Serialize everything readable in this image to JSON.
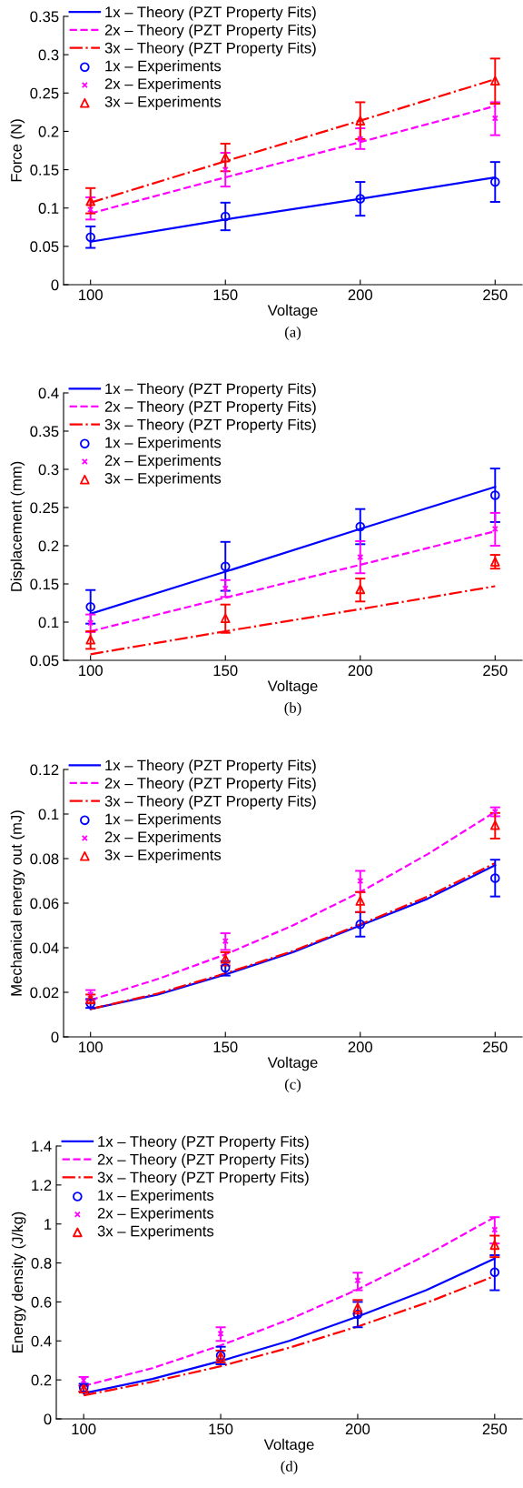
{
  "chart_data": [
    {
      "type": "line",
      "xlabel": "Voltage",
      "ylabel": "Force (N)",
      "xlim": [
        90,
        260
      ],
      "xticks": [
        100,
        150,
        200,
        250
      ],
      "ylim": [
        0,
        0.35
      ],
      "yticks": [
        0,
        0.05,
        0.1,
        0.15,
        0.2,
        0.25,
        0.3,
        0.35
      ],
      "legend": "top left",
      "grid": false,
      "annotations": [
        "(a)"
      ],
      "series": [
        {
          "name": "1x – Theory (PZT Property Fits)",
          "type": "line",
          "color": "#0000ff",
          "line_style": "solid",
          "marker": "none",
          "x": [
            100,
            150,
            200,
            250
          ],
          "values": [
            0.056,
            0.085,
            0.112,
            0.14
          ]
        },
        {
          "name": "2x – Theory (PZT Property Fits)",
          "type": "line",
          "color": "#ff00ff",
          "line_style": "dashed",
          "marker": "none",
          "x": [
            100,
            150,
            200,
            250
          ],
          "values": [
            0.093,
            0.14,
            0.186,
            0.233
          ]
        },
        {
          "name": "3x – Theory (PZT Property Fits)",
          "type": "line",
          "color": "#ff0000",
          "line_style": "dashdot",
          "marker": "none",
          "x": [
            100,
            150,
            200,
            250
          ],
          "values": [
            0.107,
            0.161,
            0.214,
            0.268
          ]
        },
        {
          "name": "1x – Experiments",
          "type": "scatter",
          "color": "#0000ff",
          "marker": "circle",
          "x": [
            100,
            150,
            200,
            250
          ],
          "values": [
            0.062,
            0.089,
            0.112,
            0.134
          ],
          "errors": [
            [
              0.048,
              0.076
            ],
            [
              0.071,
              0.107
            ],
            [
              0.09,
              0.134
            ],
            [
              0.108,
              0.16
            ]
          ]
        },
        {
          "name": "2x – Experiments",
          "type": "scatter",
          "color": "#ff00ff",
          "marker": "cross",
          "x": [
            100,
            150,
            200,
            250
          ],
          "values": [
            0.098,
            0.15,
            0.19,
            0.217
          ],
          "errors": [
            [
              0.085,
              0.114
            ],
            [
              0.128,
              0.172
            ],
            [
              0.177,
              0.204
            ],
            [
              0.195,
              0.238
            ]
          ]
        },
        {
          "name": "3x – Experiments",
          "type": "scatter",
          "color": "#ff0000",
          "marker": "triangle",
          "x": [
            100,
            150,
            200,
            250
          ],
          "values": [
            0.109,
            0.166,
            0.214,
            0.266
          ],
          "errors": [
            [
              0.093,
              0.126
            ],
            [
              0.148,
              0.184
            ],
            [
              0.19,
              0.238
            ],
            [
              0.236,
              0.295
            ]
          ]
        }
      ]
    },
    {
      "type": "line",
      "xlabel": "Voltage",
      "ylabel": "Displacement (mm)",
      "xlim": [
        90,
        260
      ],
      "xticks": [
        100,
        150,
        200,
        250
      ],
      "ylim": [
        0.05,
        0.4
      ],
      "yticks": [
        0.05,
        0.1,
        0.15,
        0.2,
        0.25,
        0.3,
        0.35,
        0.4
      ],
      "legend": "top left",
      "grid": false,
      "annotations": [
        "(b)"
      ],
      "series": [
        {
          "name": "1x – Theory (PZT Property Fits)",
          "type": "line",
          "color": "#0000ff",
          "line_style": "solid",
          "marker": "none",
          "x": [
            100,
            150,
            200,
            250
          ],
          "values": [
            0.111,
            0.166,
            0.222,
            0.277
          ]
        },
        {
          "name": "2x – Theory (PZT Property Fits)",
          "type": "line",
          "color": "#ff00ff",
          "line_style": "dashed",
          "marker": "none",
          "x": [
            100,
            150,
            200,
            250
          ],
          "values": [
            0.088,
            0.132,
            0.175,
            0.219
          ]
        },
        {
          "name": "3x – Theory (PZT Property Fits)",
          "type": "line",
          "color": "#ff0000",
          "line_style": "dashdot",
          "marker": "none",
          "x": [
            100,
            150,
            200,
            250
          ],
          "values": [
            0.058,
            0.088,
            0.117,
            0.147
          ]
        },
        {
          "name": "1x – Experiments",
          "type": "scatter",
          "color": "#0000ff",
          "marker": "circle",
          "x": [
            100,
            150,
            200,
            250
          ],
          "values": [
            0.12,
            0.173,
            0.225,
            0.266
          ],
          "errors": [
            [
              0.098,
              0.142
            ],
            [
              0.141,
              0.205
            ],
            [
              0.202,
              0.248
            ],
            [
              0.231,
              0.301
            ]
          ]
        },
        {
          "name": "2x – Experiments",
          "type": "scatter",
          "color": "#ff00ff",
          "marker": "cross",
          "x": [
            100,
            150,
            200,
            250
          ],
          "values": [
            0.099,
            0.144,
            0.185,
            0.222
          ],
          "errors": [
            [
              0.087,
              0.11
            ],
            [
              0.133,
              0.155
            ],
            [
              0.164,
              0.206
            ],
            [
              0.2,
              0.243
            ]
          ]
        },
        {
          "name": "3x – Experiments",
          "type": "scatter",
          "color": "#ff0000",
          "marker": "triangle",
          "x": [
            100,
            150,
            200,
            250
          ],
          "values": [
            0.077,
            0.105,
            0.143,
            0.179
          ],
          "errors": [
            [
              0.065,
              0.088
            ],
            [
              0.086,
              0.123
            ],
            [
              0.127,
              0.157
            ],
            [
              0.17,
              0.188
            ]
          ]
        }
      ]
    },
    {
      "type": "line",
      "xlabel": "Voltage",
      "ylabel": "Mechanical energy out (mJ)",
      "xlim": [
        90,
        260
      ],
      "xticks": [
        100,
        150,
        200,
        250
      ],
      "ylim": [
        0,
        0.12
      ],
      "yticks": [
        0,
        0.02,
        0.04,
        0.06,
        0.08,
        0.1,
        0.12
      ],
      "legend": "top left",
      "grid": false,
      "annotations": [
        "(c)"
      ],
      "series": [
        {
          "name": "1x – Theory (PZT Property Fits)",
          "type": "line",
          "color": "#0000ff",
          "line_style": "solid",
          "marker": "none",
          "x": [
            100,
            125,
            150,
            175,
            200,
            225,
            250
          ],
          "values": [
            0.0125,
            0.019,
            0.028,
            0.038,
            0.05,
            0.062,
            0.077
          ]
        },
        {
          "name": "2x – Theory (PZT Property Fits)",
          "type": "line",
          "color": "#ff00ff",
          "line_style": "dashed",
          "marker": "none",
          "x": [
            100,
            125,
            150,
            175,
            200,
            225,
            250
          ],
          "values": [
            0.0165,
            0.026,
            0.037,
            0.05,
            0.065,
            0.082,
            0.101
          ]
        },
        {
          "name": "3x – Theory (PZT Property Fits)",
          "type": "line",
          "color": "#ff0000",
          "line_style": "dashdot",
          "marker": "none",
          "x": [
            100,
            125,
            150,
            175,
            200,
            225,
            250
          ],
          "values": [
            0.0125,
            0.0195,
            0.0285,
            0.0385,
            0.0505,
            0.063,
            0.078
          ]
        },
        {
          "name": "1x – Experiments",
          "type": "scatter",
          "color": "#0000ff",
          "marker": "circle",
          "x": [
            100,
            150,
            200,
            250
          ],
          "values": [
            0.015,
            0.031,
            0.0505,
            0.0712
          ],
          "errors": [
            [
              0.013,
              0.017
            ],
            [
              0.0275,
              0.034
            ],
            [
              0.045,
              0.056
            ],
            [
              0.063,
              0.0795
            ]
          ]
        },
        {
          "name": "2x – Experiments",
          "type": "scatter",
          "color": "#ff00ff",
          "marker": "cross",
          "x": [
            100,
            150,
            200,
            250
          ],
          "values": [
            0.019,
            0.043,
            0.07,
            0.101
          ],
          "errors": [
            [
              0.0165,
              0.021
            ],
            [
              0.039,
              0.0465
            ],
            [
              0.065,
              0.0745
            ],
            [
              0.099,
              0.103
            ]
          ]
        },
        {
          "name": "3x – Experiments",
          "type": "scatter",
          "color": "#ff0000",
          "marker": "triangle",
          "x": [
            100,
            150,
            200,
            250
          ],
          "values": [
            0.017,
            0.035,
            0.061,
            0.095
          ],
          "errors": [
            [
              0.015,
              0.019
            ],
            [
              0.032,
              0.038
            ],
            [
              0.056,
              0.065
            ],
            [
              0.089,
              0.1005
            ]
          ]
        }
      ]
    },
    {
      "type": "line",
      "xlabel": "Voltage",
      "ylabel": "Energy density (J/kg)",
      "xlim": [
        90,
        260
      ],
      "xticks": [
        100,
        150,
        200,
        250
      ],
      "ylim": [
        0,
        1.4
      ],
      "yticks": [
        0,
        0.2,
        0.4,
        0.6,
        0.8,
        1,
        1.2,
        1.4
      ],
      "legend": "top left",
      "grid": false,
      "annotations": [
        "(d)"
      ],
      "series": [
        {
          "name": "1x – Theory (PZT Property Fits)",
          "type": "line",
          "color": "#0000ff",
          "line_style": "solid",
          "marker": "none",
          "x": [
            100,
            125,
            150,
            175,
            200,
            225,
            250
          ],
          "values": [
            0.131,
            0.205,
            0.297,
            0.4,
            0.525,
            0.66,
            0.823
          ]
        },
        {
          "name": "2x – Theory (PZT Property Fits)",
          "type": "line",
          "color": "#ff00ff",
          "line_style": "dashed",
          "marker": "none",
          "x": [
            100,
            125,
            150,
            175,
            200,
            225,
            250
          ],
          "values": [
            0.169,
            0.26,
            0.377,
            0.51,
            0.664,
            0.84,
            1.035
          ]
        },
        {
          "name": "3x – Theory (PZT Property Fits)",
          "type": "line",
          "color": "#ff0000",
          "line_style": "dashdot",
          "marker": "none",
          "x": [
            100,
            125,
            150,
            175,
            200,
            225,
            250
          ],
          "values": [
            0.121,
            0.19,
            0.27,
            0.365,
            0.474,
            0.595,
            0.733
          ]
        },
        {
          "name": "1x – Experiments",
          "type": "scatter",
          "color": "#0000ff",
          "marker": "circle",
          "x": [
            100,
            150,
            200,
            250
          ],
          "values": [
            0.16,
            0.325,
            0.537,
            0.752
          ],
          "errors": [
            [
              0.14,
              0.18
            ],
            [
              0.28,
              0.37
            ],
            [
              0.47,
              0.6
            ],
            [
              0.66,
              0.84
            ]
          ]
        },
        {
          "name": "2x – Experiments",
          "type": "scatter",
          "color": "#ff00ff",
          "marker": "cross",
          "x": [
            100,
            150,
            200,
            250
          ],
          "values": [
            0.197,
            0.437,
            0.71,
            0.971
          ],
          "errors": [
            [
              0.17,
              0.215
            ],
            [
              0.4,
              0.47
            ],
            [
              0.66,
              0.75
            ],
            [
              0.9,
              1.035
            ]
          ]
        },
        {
          "name": "3x – Experiments",
          "type": "scatter",
          "color": "#ff0000",
          "marker": "triangle",
          "x": [
            100,
            150,
            200,
            250
          ],
          "values": [
            0.155,
            0.322,
            0.572,
            0.892
          ],
          "errors": [
            [
              0.14,
              0.17
            ],
            [
              0.29,
              0.35
            ],
            [
              0.54,
              0.61
            ],
            [
              0.83,
              0.94
            ]
          ]
        }
      ]
    }
  ]
}
